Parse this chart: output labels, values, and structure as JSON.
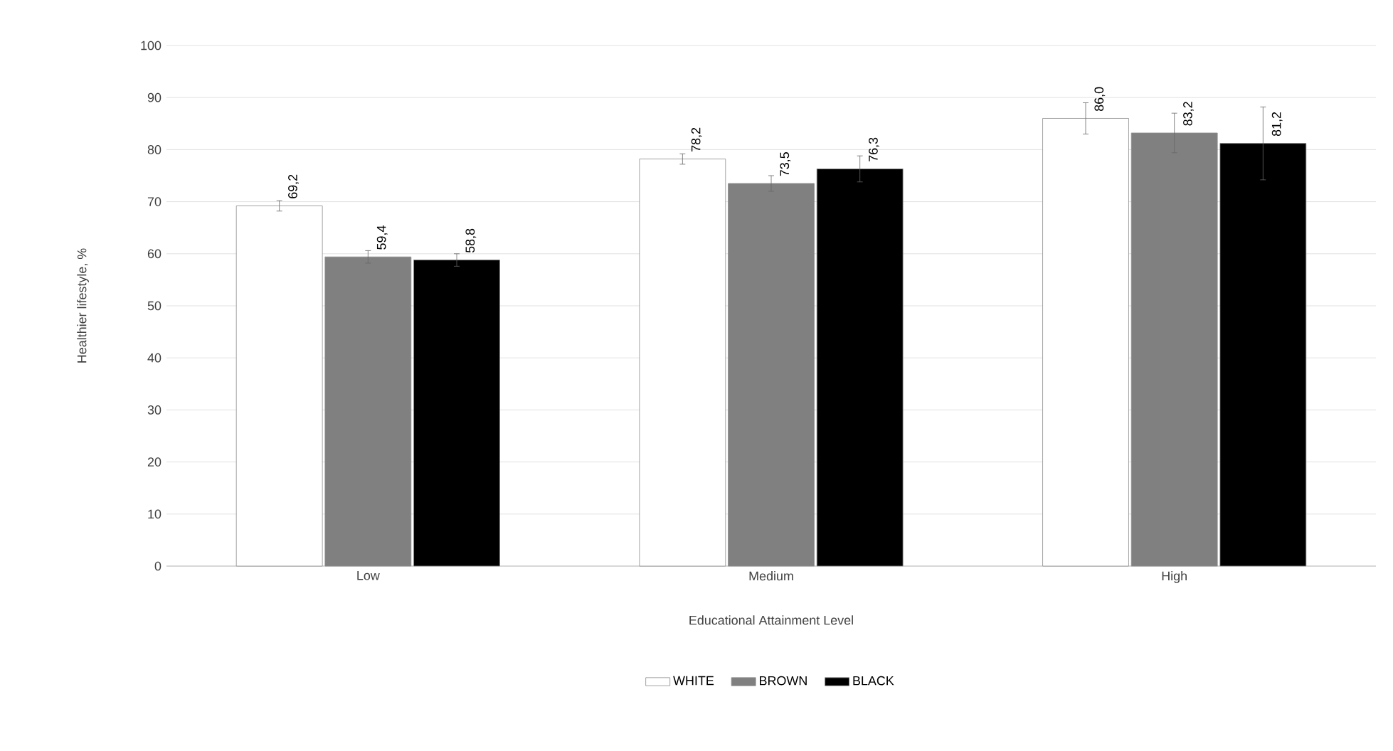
{
  "chart_data": {
    "type": "bar",
    "xlabel": "Educational Attainment Level",
    "ylabel": "Healthier lifestyle, %",
    "categories": [
      "Low",
      "Medium",
      "High"
    ],
    "series": [
      {
        "name": "WHITE",
        "color": "#ffffff",
        "values": [
          69.2,
          78.2,
          86.0
        ],
        "errors": [
          1,
          1,
          3
        ],
        "value_labels": [
          "69,2",
          "78,2",
          "86,0"
        ]
      },
      {
        "name": "BROWN",
        "color": "#808080",
        "values": [
          59.4,
          73.5,
          83.2
        ],
        "errors": [
          1.2,
          1.5,
          3.8
        ],
        "value_labels": [
          "59,4",
          "73,5",
          "83,2"
        ]
      },
      {
        "name": "BLACK",
        "color": "#000000",
        "values": [
          58.8,
          76.3,
          81.2
        ],
        "errors": [
          1.2,
          2.5,
          7
        ],
        "value_labels": [
          "58,8",
          "76,3",
          "81,2"
        ]
      }
    ],
    "ylim": [
      0,
      100
    ],
    "yticks": [
      0,
      10,
      20,
      30,
      40,
      50,
      60,
      70,
      80,
      90,
      100
    ],
    "grid": "y",
    "legend": "bottom"
  }
}
